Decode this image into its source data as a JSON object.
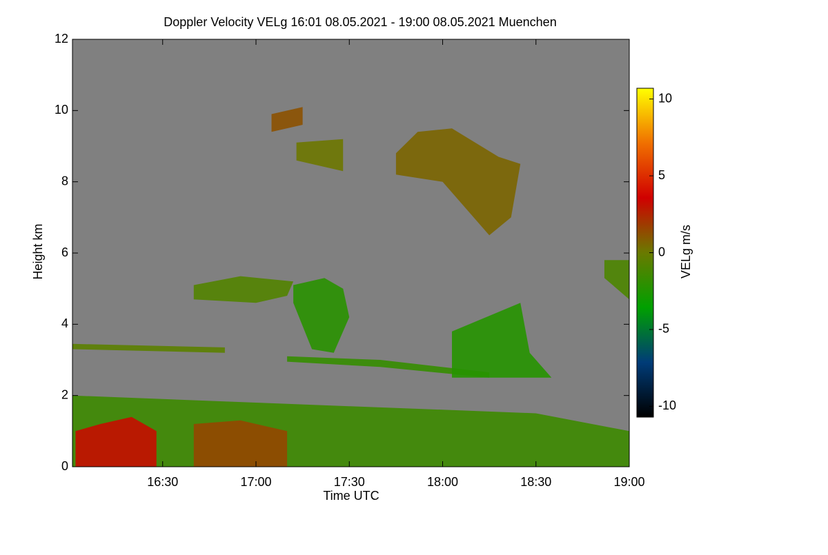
{
  "chart_data": {
    "type": "heatmap",
    "title": "Doppler Velocity VELg   16:01 08.05.2021 - 19:00 08.05.2021 Muenchen",
    "x_label": "Time UTC",
    "y_label": "Height km",
    "colorbar_label": "VELg m/s",
    "xlim": [
      "16:01",
      "19:00"
    ],
    "xticks": [
      "16:30",
      "17:00",
      "17:30",
      "18:00",
      "18:30",
      "19:00"
    ],
    "ylim": [
      0,
      12
    ],
    "yticks": [
      0,
      2,
      4,
      6,
      8,
      10,
      12
    ],
    "clim": [
      -10.7,
      10.7
    ],
    "cticks": [
      -10,
      -5,
      0,
      5,
      10
    ],
    "colormap": [
      "#000000",
      "#003c78",
      "#00a000",
      "#6a7a00",
      "#d00000",
      "#f07000",
      "#ffff00"
    ],
    "background": "#808080",
    "regions": [
      {
        "x": [
          "16:01",
          "19:00",
          "19:00",
          "18:30",
          "18:00",
          "17:30",
          "17:00",
          "16:30",
          "16:01"
        ],
        "y": [
          0,
          0,
          1.0,
          1.5,
          1.6,
          1.7,
          1.8,
          1.9,
          2.0
        ],
        "value": -1.5
      },
      {
        "x": [
          "16:02",
          "16:28",
          "16:28",
          "16:20",
          "16:10",
          "16:02"
        ],
        "y": [
          0,
          0,
          1.0,
          1.4,
          1.2,
          1.0
        ],
        "value": 3.2
      },
      {
        "x": [
          "16:40",
          "17:10",
          "17:10",
          "16:55",
          "16:40"
        ],
        "y": [
          0,
          0,
          1.0,
          1.3,
          1.2
        ],
        "value": 1.5
      },
      {
        "x": [
          "16:01",
          "16:50",
          "16:50",
          "16:01"
        ],
        "y": [
          3.3,
          3.2,
          3.35,
          3.45
        ],
        "value": -0.5
      },
      {
        "x": [
          "16:40",
          "17:00",
          "17:10",
          "17:12",
          "16:55",
          "16:40"
        ],
        "y": [
          4.7,
          4.6,
          4.8,
          5.2,
          5.35,
          5.1
        ],
        "value": -0.8
      },
      {
        "x": [
          "17:12",
          "17:18",
          "17:25",
          "17:30",
          "17:28",
          "17:22",
          "17:12"
        ],
        "y": [
          4.6,
          3.3,
          3.2,
          4.2,
          5.0,
          5.3,
          5.1
        ],
        "value": -2.2
      },
      {
        "x": [
          "17:10",
          "17:40",
          "18:15",
          "18:15",
          "17:40",
          "17:10"
        ],
        "y": [
          2.95,
          2.8,
          2.5,
          2.65,
          3.0,
          3.1
        ],
        "value": -1.8
      },
      {
        "x": [
          "18:03",
          "18:35",
          "18:28",
          "18:25",
          "18:03"
        ],
        "y": [
          2.5,
          2.5,
          3.2,
          4.6,
          3.8
        ],
        "value": -2.3
      },
      {
        "x": [
          "17:45",
          "17:52",
          "18:03",
          "18:18",
          "18:25",
          "18:22",
          "18:15",
          "18:00",
          "17:45"
        ],
        "y": [
          8.8,
          9.4,
          9.5,
          8.7,
          8.5,
          7.0,
          6.5,
          8.0,
          8.2
        ],
        "value": 0.6
      },
      {
        "x": [
          "17:13",
          "17:28",
          "17:28",
          "17:13"
        ],
        "y": [
          8.6,
          8.3,
          9.2,
          9.1
        ],
        "value": 0.1
      },
      {
        "x": [
          "17:05",
          "17:15",
          "17:15",
          "17:05"
        ],
        "y": [
          9.4,
          9.6,
          10.1,
          9.9
        ],
        "value": 1.2
      },
      {
        "x": [
          "18:52",
          "19:00",
          "19:00",
          "18:52"
        ],
        "y": [
          5.3,
          4.7,
          5.8,
          5.8
        ],
        "value": -1.0
      }
    ]
  }
}
